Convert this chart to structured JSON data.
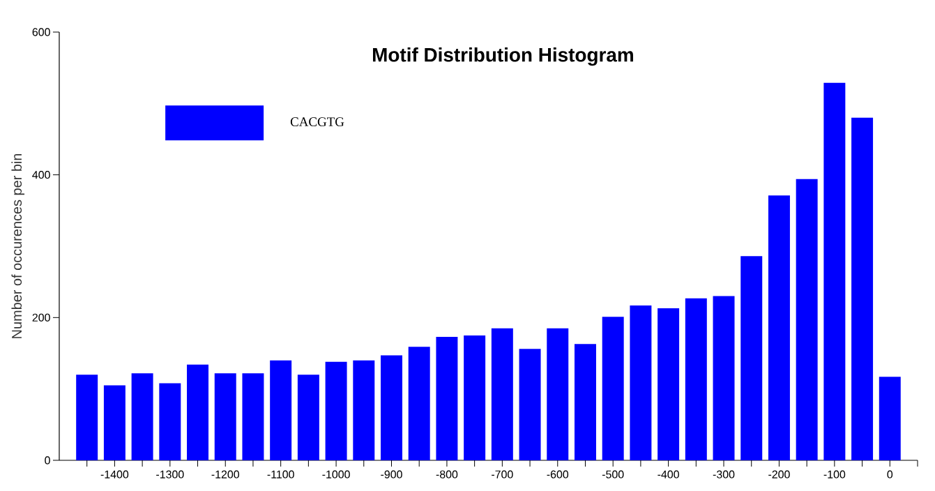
{
  "chart_data": {
    "type": "histogram",
    "title": "Motif Distribution Histogram",
    "ylabel": "Number of occurences per bin",
    "bins": [
      -1475,
      -1425,
      -1375,
      -1325,
      -1275,
      -1225,
      -1175,
      -1125,
      -1075,
      -1025,
      -975,
      -925,
      -875,
      -825,
      -775,
      -725,
      -675,
      -625,
      -575,
      -525,
      -475,
      -425,
      -375,
      -325,
      -275,
      -225,
      -175,
      -125,
      -75,
      -25,
      25
    ],
    "series": [
      {
        "name": "CACGTG",
        "color": "#0000ff",
        "values": [
          120,
          105,
          122,
          108,
          134,
          122,
          122,
          140,
          120,
          138,
          140,
          147,
          159,
          173,
          175,
          185,
          156,
          185,
          163,
          201,
          217,
          213,
          227,
          230,
          286,
          371,
          394,
          529,
          480,
          117
        ]
      }
    ],
    "xlim": [
      -1500,
      50
    ],
    "ylim": [
      0,
      600
    ],
    "yticks": [
      0,
      200,
      400,
      600
    ],
    "xticks": [
      {
        "value": -1450,
        "label": null
      },
      -1400,
      {
        "value": -1350,
        "label": null
      },
      -1300,
      {
        "value": -1250,
        "label": null
      },
      -1200,
      {
        "value": -1150,
        "label": null
      },
      -1100,
      {
        "value": -1050,
        "label": null
      },
      -1000,
      {
        "value": -950,
        "label": null
      },
      -900,
      {
        "value": -850,
        "label": null
      },
      -800,
      {
        "value": -750,
        "label": null
      },
      -700,
      {
        "value": -650,
        "label": null
      },
      -600,
      {
        "value": -550,
        "label": null
      },
      -500,
      {
        "value": -450,
        "label": null
      },
      -400,
      {
        "value": -350,
        "label": null
      },
      -300,
      {
        "value": -250,
        "label": null
      },
      -200,
      {
        "value": -150,
        "label": null
      },
      -100,
      {
        "value": -50,
        "label": null
      },
      0,
      {
        "value": 50,
        "label": null
      }
    ],
    "legend": "top left",
    "grid": false
  }
}
